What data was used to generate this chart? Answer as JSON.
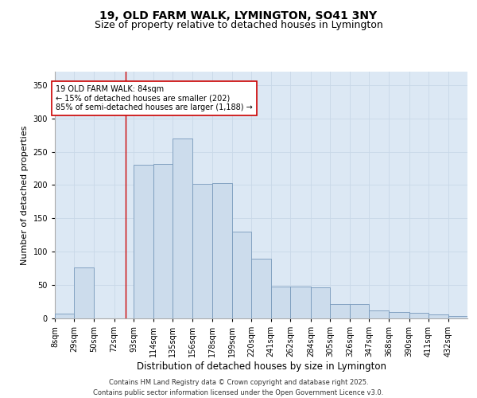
{
  "title_line1": "19, OLD FARM WALK, LYMINGTON, SO41 3NY",
  "title_line2": "Size of property relative to detached houses in Lymington",
  "xlabel": "Distribution of detached houses by size in Lymington",
  "ylabel": "Number of detached properties",
  "bar_labels": [
    "8sqm",
    "29sqm",
    "50sqm",
    "72sqm",
    "93sqm",
    "114sqm",
    "135sqm",
    "156sqm",
    "178sqm",
    "199sqm",
    "220sqm",
    "241sqm",
    "262sqm",
    "284sqm",
    "305sqm",
    "326sqm",
    "347sqm",
    "368sqm",
    "390sqm",
    "411sqm",
    "432sqm"
  ],
  "bar_heights": [
    7,
    76,
    0,
    0,
    230,
    232,
    270,
    202,
    203,
    130,
    90,
    48,
    48,
    47,
    22,
    21,
    12,
    9,
    8,
    6,
    3
  ],
  "bins": [
    8,
    29,
    50,
    72,
    93,
    114,
    135,
    156,
    178,
    199,
    220,
    241,
    262,
    284,
    305,
    326,
    347,
    368,
    390,
    411,
    432,
    453
  ],
  "bar_color": "#ccdcec",
  "bar_edge_color": "#7799bb",
  "vline_x": 84,
  "vline_color": "#cc0000",
  "annotation_text": "19 OLD FARM WALK: 84sqm\n← 15% of detached houses are smaller (202)\n85% of semi-detached houses are larger (1,188) →",
  "annotation_box_facecolor": "#ffffff",
  "annotation_box_edgecolor": "#cc0000",
  "yticks": [
    0,
    50,
    100,
    150,
    200,
    250,
    300,
    350
  ],
  "ylim": [
    0,
    370
  ],
  "xlim": [
    8,
    453
  ],
  "grid_color": "#c8d8e8",
  "bg_color": "#dce8f4",
  "footer": "Contains HM Land Registry data © Crown copyright and database right 2025.\nContains public sector information licensed under the Open Government Licence v3.0.",
  "title_fontsize": 10,
  "subtitle_fontsize": 9,
  "ylabel_fontsize": 8,
  "xlabel_fontsize": 8.5,
  "tick_fontsize": 7,
  "annot_fontsize": 7,
  "footer_fontsize": 6
}
